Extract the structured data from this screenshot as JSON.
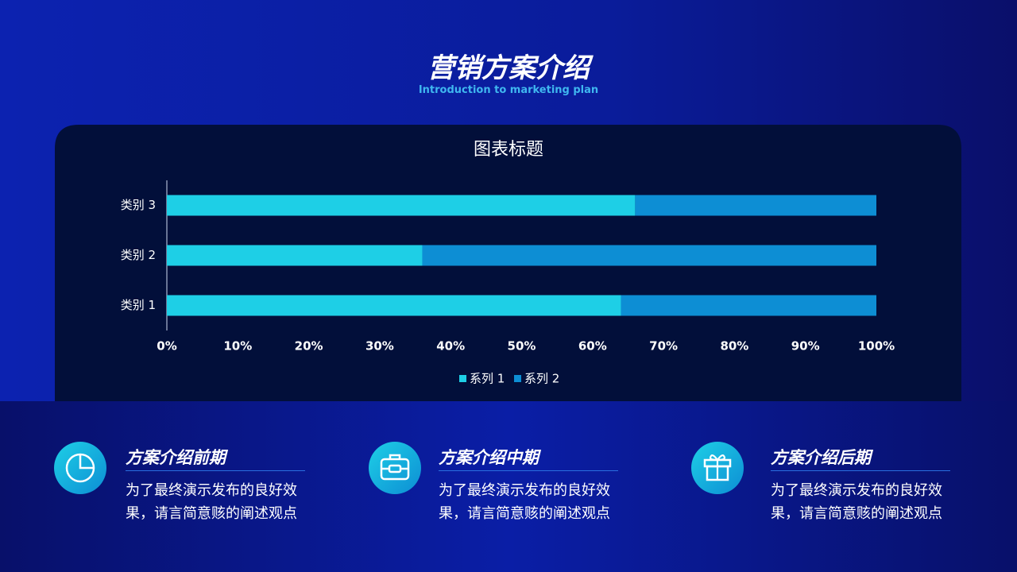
{
  "header": {
    "title": "营销方案介绍",
    "subtitle": "Introduction to marketing plan"
  },
  "chart_data": {
    "type": "stacked-bar-horizontal",
    "title": "图表标题",
    "categories": [
      "类别 1",
      "类别 2",
      "类别 3"
    ],
    "series": [
      {
        "name": "系列 1",
        "color": "#1ecfe6",
        "values": [
          64,
          36,
          66
        ]
      },
      {
        "name": "系列 2",
        "color": "#0d8ed4",
        "values": [
          36,
          64,
          34
        ]
      }
    ],
    "xlim": [
      0,
      100
    ],
    "xticks": [
      {
        "value": 0,
        "label": "0%"
      },
      {
        "value": 10,
        "label": "10%"
      },
      {
        "value": 20,
        "label": "20%"
      },
      {
        "value": 30,
        "label": "30%"
      },
      {
        "value": 40,
        "label": "40%"
      },
      {
        "value": 50,
        "label": "50%"
      },
      {
        "value": 60,
        "label": "60%"
      },
      {
        "value": 70,
        "label": "70%"
      },
      {
        "value": 80,
        "label": "80%"
      },
      {
        "value": 90,
        "label": "90%"
      },
      {
        "value": 100,
        "label": "100%"
      }
    ],
    "legend": "bottom"
  },
  "cards": [
    {
      "title": "方案介绍前期",
      "lines": [
        "为了最终演示发布的良好效",
        "果，请言简意赅的阐述观点"
      ]
    },
    {
      "title": "方案介绍中期",
      "lines": [
        "为了最终演示发布的良好效",
        "果，请言简意赅的阐述观点"
      ]
    },
    {
      "title": "方案介绍后期",
      "lines": [
        "为了最终演示发布的良好效",
        "果，请言简意赅的阐述观点"
      ]
    }
  ]
}
